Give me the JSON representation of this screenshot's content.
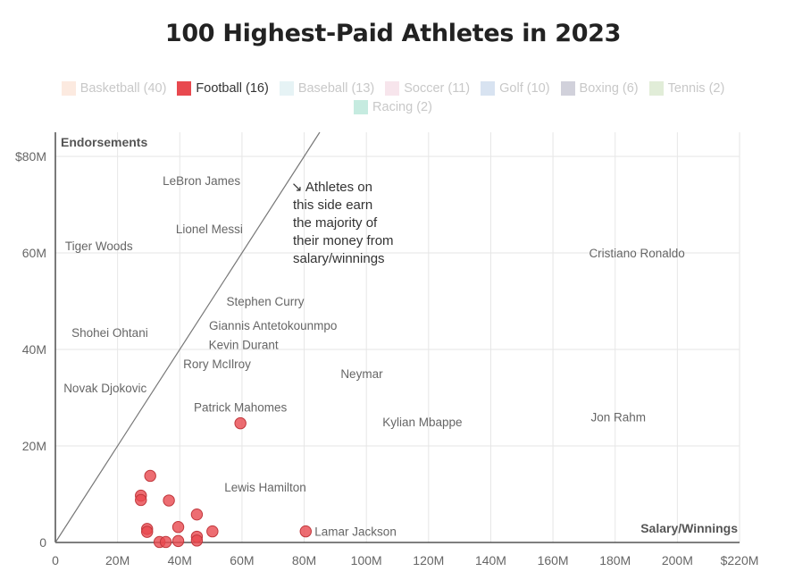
{
  "title": "100 Highest-Paid Athletes in 2023",
  "legend": [
    {
      "label": "Basketball (40)",
      "color": "#f7c4a5",
      "active": false
    },
    {
      "label": "Football (16)",
      "color": "#e8494f",
      "active": true
    },
    {
      "label": "Baseball (13)",
      "color": "#b7dde3",
      "active": false
    },
    {
      "label": "Soccer (11)",
      "color": "#e8b4c8",
      "active": false
    },
    {
      "label": "Golf (10)",
      "color": "#8fb0d6",
      "active": false
    },
    {
      "label": "Boxing (6)",
      "color": "#7a7a99",
      "active": false
    },
    {
      "label": "Tennis (2)",
      "color": "#a9cc8f",
      "active": false
    },
    {
      "label": "Racing (2)",
      "color": "#5cc7a6",
      "active": false
    }
  ],
  "chart_data": {
    "type": "scatter",
    "title": "100 Highest-Paid Athletes in 2023",
    "xlabel": "Salary/Winnings",
    "ylabel": "Endorsements",
    "xlim": [
      0,
      220
    ],
    "ylim": [
      0,
      80
    ],
    "x_ticks": [
      "0",
      "20M",
      "40M",
      "60M",
      "80M",
      "100M",
      "120M",
      "140M",
      "160M",
      "180M",
      "200M",
      "$220M"
    ],
    "y_ticks": [
      "0",
      "20M",
      "40M",
      "60M",
      "$80M"
    ],
    "unit": "millions USD",
    "grid": true,
    "reference_line": {
      "slope": 1,
      "note": "Athletes on this side earn the majority of their money from salary/winnings"
    },
    "annotation": "↘ Athletes on this side earn the majority of their money from salary/winnings",
    "annotation_lines": [
      "↘ Athletes on",
      "this side earn",
      "the majority of",
      "their money from",
      "salary/winnings"
    ],
    "series": [
      {
        "name": "Football (16)",
        "color": "#e8494f",
        "points": [
          {
            "x": 59.5,
            "y": 24.7,
            "label": "Patrick Mahomes"
          },
          {
            "x": 80.5,
            "y": 2.3,
            "label": "Lamar Jackson"
          },
          {
            "x": 30.5,
            "y": 13.8
          },
          {
            "x": 27.5,
            "y": 9.7
          },
          {
            "x": 27.5,
            "y": 8.8
          },
          {
            "x": 36.5,
            "y": 8.7
          },
          {
            "x": 45.5,
            "y": 5.8
          },
          {
            "x": 39.5,
            "y": 3.2
          },
          {
            "x": 29.5,
            "y": 2.8
          },
          {
            "x": 29.5,
            "y": 2.2
          },
          {
            "x": 50.5,
            "y": 2.3
          },
          {
            "x": 45.5,
            "y": 1.2
          },
          {
            "x": 45.5,
            "y": 0.4
          },
          {
            "x": 39.5,
            "y": 0.3
          },
          {
            "x": 33.5,
            "y": 0.1
          },
          {
            "x": 35.5,
            "y": 0.1
          }
        ]
      }
    ],
    "other_labels": [
      {
        "label": "LeBron James",
        "x": 47,
        "y": 75
      },
      {
        "label": "Lionel Messi",
        "x": 49.5,
        "y": 65
      },
      {
        "label": "Tiger Woods",
        "x": 14,
        "y": 61.5
      },
      {
        "label": "Cristiano Ronaldo",
        "x": 187,
        "y": 60
      },
      {
        "label": "Stephen Curry",
        "x": 67.5,
        "y": 50
      },
      {
        "label": "Giannis Antetokounmpo",
        "x": 70,
        "y": 45
      },
      {
        "label": "Kevin Durant",
        "x": 60.5,
        "y": 41
      },
      {
        "label": "Shohei Ohtani",
        "x": 17.5,
        "y": 43.5
      },
      {
        "label": "Rory McIlroy",
        "x": 52,
        "y": 37
      },
      {
        "label": "Neymar",
        "x": 98.5,
        "y": 35
      },
      {
        "label": "Novak Djokovic",
        "x": 16,
        "y": 32
      },
      {
        "label": "Jon Rahm",
        "x": 181,
        "y": 26
      },
      {
        "label": "Kylian Mbappe",
        "x": 118,
        "y": 25
      },
      {
        "label": "Lewis Hamilton",
        "x": 67.5,
        "y": 11.5
      }
    ]
  }
}
